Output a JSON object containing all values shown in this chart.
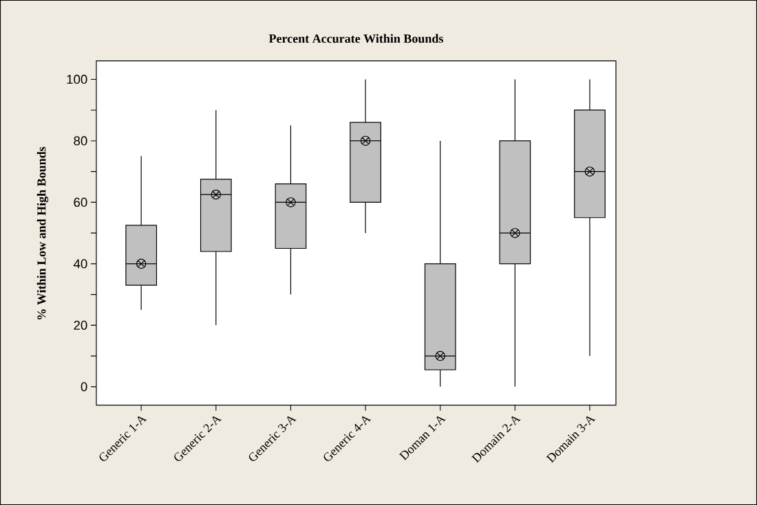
{
  "chart_data": {
    "type": "box",
    "title": "Percent Accurate Within Bounds",
    "ylabel": "% Within Low and High Bounds",
    "categories": [
      "Generic 1-A",
      "Generic 2-A",
      "Generic 3-A",
      "Generic 4-A",
      "Doman 1-A",
      "Domain 2-A",
      "Domain 3-A"
    ],
    "color": "#c0c0c0",
    "boxes": [
      {
        "low": 25,
        "q1": 33,
        "median": 40,
        "q3": 52.5,
        "high": 75,
        "mean": 40
      },
      {
        "low": 20,
        "q1": 44,
        "median": 62.5,
        "q3": 67.5,
        "high": 90,
        "mean": 62.5
      },
      {
        "low": 30,
        "q1": 45,
        "median": 60,
        "q3": 66,
        "high": 85,
        "mean": 60
      },
      {
        "low": 50,
        "q1": 60,
        "median": 80,
        "q3": 86,
        "high": 100,
        "mean": 80
      },
      {
        "low": 0,
        "q1": 5.5,
        "median": 10,
        "q3": 40,
        "high": 80,
        "mean": 10
      },
      {
        "low": 0,
        "q1": 40,
        "median": 50,
        "q3": 80,
        "high": 100,
        "mean": 50
      },
      {
        "low": 10,
        "q1": 55,
        "median": 70,
        "q3": 90,
        "high": 100,
        "mean": 70
      }
    ],
    "ylim": [
      -6,
      106
    ],
    "yticks": [
      0,
      {
        "value": 10,
        "label": null
      },
      20,
      {
        "value": 30,
        "label": null
      },
      40,
      {
        "value": 50,
        "label": null
      },
      60,
      {
        "value": 70,
        "label": null
      },
      80,
      {
        "value": 90,
        "label": null
      },
      100
    ]
  }
}
